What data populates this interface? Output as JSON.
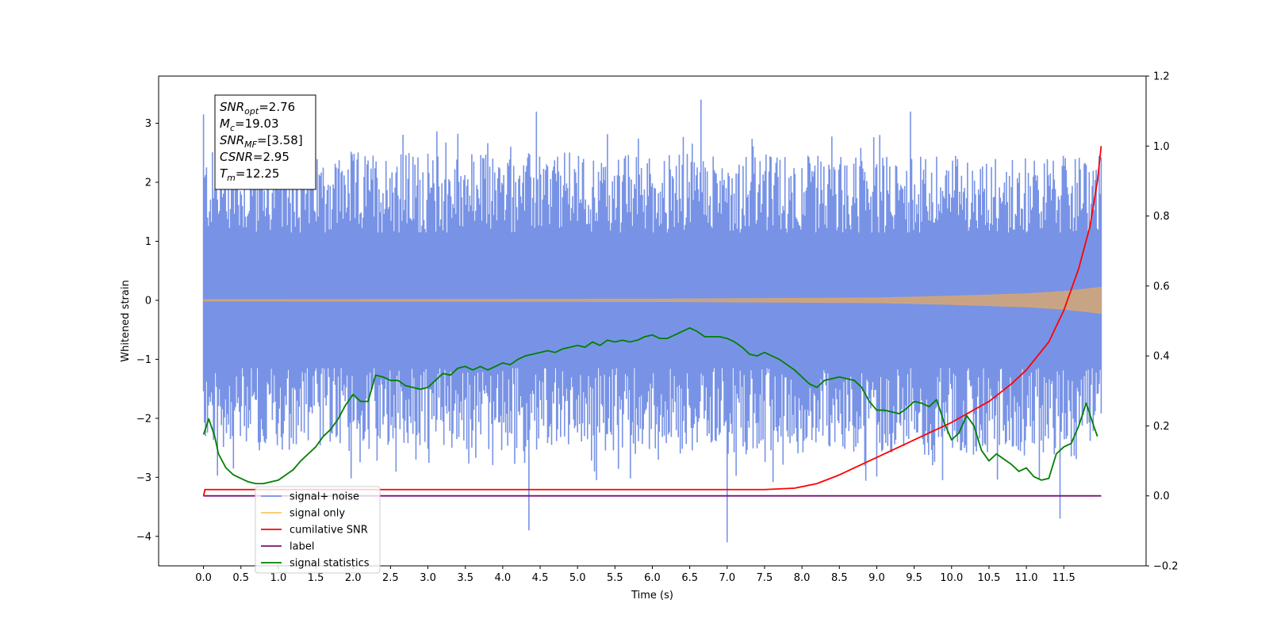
{
  "chart_data": {
    "type": "line",
    "xlabel": "Time (s)",
    "ylabel": "Whitened strain",
    "xlim": [
      -0.6,
      12.6
    ],
    "ylim": [
      -4.5,
      3.8
    ],
    "y2lim": [
      -0.2,
      1.2
    ],
    "x_ticks": [
      "0.0",
      "0.5",
      "1.0",
      "1.5",
      "2.0",
      "2.5",
      "3.0",
      "3.5",
      "4.0",
      "4.5",
      "5.0",
      "5.5",
      "6.0",
      "6.5",
      "7.0",
      "7.5",
      "8.0",
      "8.5",
      "9.0",
      "9.5",
      "10.0",
      "10.5",
      "11.0",
      "11.5"
    ],
    "y_ticks": [
      "3",
      "2",
      "1",
      "0",
      "−1",
      "−2",
      "−3",
      "−4"
    ],
    "y2_ticks": [
      "1.2",
      "1.0",
      "0.8",
      "0.6",
      "0.4",
      "0.2",
      "0.0",
      "−0.2"
    ],
    "annotation": [
      {
        "main": "SNR",
        "sub": "opt",
        "rest": "=2.76"
      },
      {
        "main": "M",
        "sub": "c",
        "rest": "=19.03"
      },
      {
        "main": "SNR",
        "sub": "MF",
        "rest": "=[3.58]"
      },
      {
        "main": "CSNR",
        "sub": "",
        "rest": "=2.95"
      },
      {
        "main": "T",
        "sub": "m",
        "rest": "=12.25"
      }
    ],
    "legend": [
      {
        "label": "signal+ noise",
        "color": "#7893e6"
      },
      {
        "label": "signal only",
        "color": "#ffc266"
      },
      {
        "label": "cumilative SNR",
        "color": "#ff0000"
      },
      {
        "label": "label",
        "color": "#7b0e7b"
      },
      {
        "label": "signal statistics",
        "color": "#008000"
      }
    ],
    "legend_position": "lower-left",
    "series": [
      {
        "name": "signal+ noise",
        "axis": "left",
        "color": "#7893e6",
        "band_x": [
          0,
          12
        ],
        "upper_envelope": [
          2.0,
          1.9
        ],
        "lower_envelope": [
          -2.0,
          -2.1
        ],
        "notable_spikes": [
          [
            0.0,
            3.15
          ],
          [
            4.45,
            3.2
          ],
          [
            6.65,
            3.4
          ],
          [
            9.45,
            3.2
          ],
          [
            4.35,
            -3.9
          ],
          [
            7.0,
            -4.1
          ],
          [
            11.45,
            -3.7
          ]
        ]
      },
      {
        "name": "signal only",
        "axis": "left",
        "color": "#d2a679",
        "x": [
          0,
          6,
          9,
          10,
          11,
          11.5,
          12
        ],
        "amplitude": [
          0.01,
          0.02,
          0.04,
          0.07,
          0.11,
          0.15,
          0.22
        ]
      },
      {
        "name": "cumilative SNR",
        "axis": "right",
        "color": "#ff0000",
        "x": [
          0.0,
          0.02,
          7.5,
          7.9,
          8.2,
          8.5,
          8.8,
          9.0,
          9.5,
          10.0,
          10.5,
          10.8,
          11.0,
          11.3,
          11.5,
          11.7,
          11.85,
          11.95,
          12.0
        ],
        "y": [
          0.0,
          0.018,
          0.018,
          0.022,
          0.035,
          0.06,
          0.09,
          0.11,
          0.16,
          0.21,
          0.27,
          0.32,
          0.36,
          0.44,
          0.53,
          0.65,
          0.77,
          0.9,
          1.0
        ]
      },
      {
        "name": "label",
        "axis": "right",
        "color": "#7b0e7b",
        "x": [
          0.0,
          12.0
        ],
        "y": [
          0.0,
          0.0
        ]
      },
      {
        "name": "signal statistics",
        "axis": "right",
        "color": "#008000",
        "x": [
          0.0,
          0.07,
          0.15,
          0.2,
          0.3,
          0.4,
          0.5,
          0.6,
          0.7,
          0.8,
          0.9,
          1.0,
          1.1,
          1.2,
          1.3,
          1.4,
          1.5,
          1.6,
          1.7,
          1.8,
          1.9,
          2.0,
          2.1,
          2.2,
          2.3,
          2.4,
          2.5,
          2.6,
          2.7,
          2.8,
          2.9,
          3.0,
          3.1,
          3.2,
          3.3,
          3.4,
          3.5,
          3.6,
          3.7,
          3.8,
          3.9,
          4.0,
          4.1,
          4.2,
          4.3,
          4.4,
          4.5,
          4.6,
          4.7,
          4.8,
          4.9,
          5.0,
          5.1,
          5.2,
          5.3,
          5.4,
          5.5,
          5.6,
          5.7,
          5.8,
          5.9,
          6.0,
          6.1,
          6.2,
          6.3,
          6.4,
          6.5,
          6.6,
          6.7,
          6.8,
          6.9,
          7.0,
          7.1,
          7.2,
          7.3,
          7.4,
          7.5,
          7.6,
          7.7,
          7.8,
          7.9,
          8.0,
          8.1,
          8.2,
          8.3,
          8.4,
          8.5,
          8.6,
          8.7,
          8.8,
          8.9,
          9.0,
          9.1,
          9.2,
          9.3,
          9.4,
          9.5,
          9.6,
          9.7,
          9.8,
          9.9,
          10.0,
          10.1,
          10.2,
          10.3,
          10.4,
          10.5,
          10.6,
          10.7,
          10.8,
          10.9,
          11.0,
          11.1,
          11.2,
          11.3,
          11.4,
          11.5,
          11.6,
          11.7,
          11.8,
          11.9,
          11.95
        ],
        "y": [
          0.175,
          0.22,
          0.17,
          0.12,
          0.08,
          0.06,
          0.05,
          0.04,
          0.035,
          0.035,
          0.04,
          0.045,
          0.06,
          0.075,
          0.1,
          0.12,
          0.14,
          0.17,
          0.19,
          0.22,
          0.26,
          0.29,
          0.27,
          0.27,
          0.345,
          0.34,
          0.33,
          0.33,
          0.315,
          0.31,
          0.305,
          0.31,
          0.33,
          0.35,
          0.345,
          0.365,
          0.37,
          0.36,
          0.37,
          0.36,
          0.37,
          0.38,
          0.375,
          0.39,
          0.4,
          0.405,
          0.41,
          0.415,
          0.41,
          0.42,
          0.425,
          0.43,
          0.425,
          0.44,
          0.43,
          0.445,
          0.44,
          0.445,
          0.44,
          0.445,
          0.455,
          0.46,
          0.45,
          0.45,
          0.46,
          0.47,
          0.48,
          0.47,
          0.455,
          0.455,
          0.455,
          0.45,
          0.44,
          0.425,
          0.405,
          0.4,
          0.41,
          0.4,
          0.39,
          0.375,
          0.36,
          0.34,
          0.32,
          0.31,
          0.33,
          0.335,
          0.34,
          0.335,
          0.33,
          0.31,
          0.27,
          0.245,
          0.245,
          0.24,
          0.235,
          0.25,
          0.27,
          0.265,
          0.255,
          0.275,
          0.21,
          0.16,
          0.18,
          0.23,
          0.2,
          0.13,
          0.1,
          0.12,
          0.105,
          0.09,
          0.07,
          0.08,
          0.055,
          0.045,
          0.05,
          0.12,
          0.14,
          0.15,
          0.2,
          0.265,
          0.2,
          0.17
        ]
      }
    ]
  }
}
